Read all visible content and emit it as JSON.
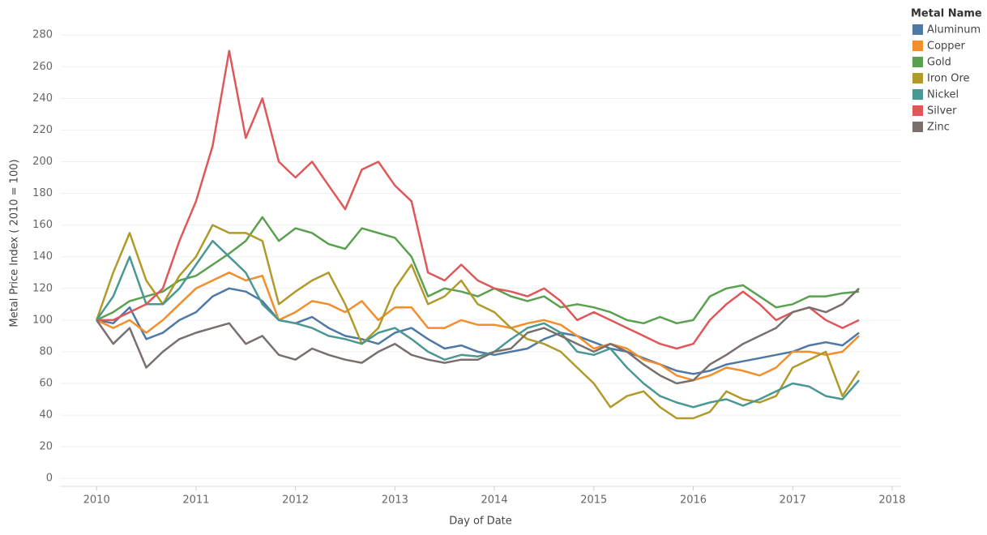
{
  "chart_data": {
    "type": "line",
    "y_label": "Metal Price Index ( 2010 = 100)",
    "x_label": "Day of Date",
    "legend_title": "Metal Name",
    "legend": "right",
    "grid": true,
    "xlim": [
      2009.64,
      2018.09
    ],
    "xticks": [
      2010,
      2011,
      2012,
      2013,
      2014,
      2015,
      2016,
      2017,
      2018
    ],
    "ylim": [
      -5,
      297
    ],
    "yticks": [
      0,
      20,
      40,
      60,
      80,
      100,
      120,
      140,
      160,
      180,
      200,
      220,
      240,
      260,
      280
    ],
    "x": [
      2010,
      2010.167,
      2010.333,
      2010.5,
      2010.667,
      2010.833,
      2011,
      2011.167,
      2011.333,
      2011.5,
      2011.667,
      2011.833,
      2012,
      2012.167,
      2012.333,
      2012.5,
      2012.667,
      2012.833,
      2013,
      2013.167,
      2013.333,
      2013.5,
      2013.667,
      2013.833,
      2014,
      2014.167,
      2014.333,
      2014.5,
      2014.667,
      2014.833,
      2015,
      2015.167,
      2015.333,
      2015.5,
      2015.667,
      2015.833,
      2016,
      2016.167,
      2016.333,
      2016.5,
      2016.667,
      2016.833,
      2017,
      2017.167,
      2017.333,
      2017.5,
      2017.667
    ],
    "series": [
      {
        "name": "Aluminum",
        "color": "#4e79a7",
        "values": [
          100,
          98,
          108,
          88,
          92,
          100,
          105,
          115,
          120,
          118,
          112,
          100,
          98,
          102,
          95,
          90,
          88,
          85,
          92,
          95,
          88,
          82,
          84,
          80,
          78,
          80,
          82,
          88,
          92,
          90,
          86,
          82,
          80,
          76,
          72,
          68,
          66,
          68,
          72,
          74,
          76,
          78,
          80,
          84,
          86,
          84,
          92
        ]
      },
      {
        "name": "Copper",
        "color": "#f28e2b",
        "values": [
          100,
          95,
          100,
          92,
          100,
          110,
          120,
          125,
          130,
          125,
          128,
          100,
          105,
          112,
          110,
          105,
          112,
          100,
          108,
          108,
          95,
          95,
          100,
          97,
          97,
          95,
          98,
          100,
          97,
          90,
          82,
          85,
          82,
          75,
          72,
          65,
          62,
          65,
          70,
          68,
          65,
          70,
          80,
          80,
          78,
          80,
          90
        ]
      },
      {
        "name": "Gold",
        "color": "#59a14f",
        "values": [
          100,
          105,
          112,
          115,
          118,
          125,
          128,
          135,
          142,
          150,
          165,
          150,
          158,
          155,
          148,
          145,
          158,
          155,
          152,
          140,
          115,
          120,
          118,
          115,
          120,
          115,
          112,
          115,
          108,
          110,
          108,
          105,
          100,
          98,
          102,
          98,
          100,
          115,
          120,
          122,
          115,
          108,
          110,
          115,
          115,
          117,
          118
        ]
      },
      {
        "name": "Iron Ore",
        "color": "#b09a2a",
        "values": [
          100,
          130,
          155,
          125,
          110,
          128,
          140,
          160,
          155,
          155,
          150,
          110,
          118,
          125,
          130,
          110,
          85,
          95,
          120,
          135,
          110,
          115,
          125,
          110,
          105,
          95,
          88,
          85,
          80,
          70,
          60,
          45,
          52,
          55,
          45,
          38,
          38,
          42,
          55,
          50,
          48,
          52,
          70,
          75,
          80,
          52,
          68
        ]
      },
      {
        "name": "Nickel",
        "color": "#499894",
        "values": [
          100,
          115,
          140,
          110,
          110,
          120,
          135,
          150,
          140,
          130,
          110,
          100,
          98,
          95,
          90,
          88,
          85,
          92,
          95,
          88,
          80,
          75,
          78,
          77,
          80,
          88,
          95,
          98,
          92,
          80,
          78,
          82,
          70,
          60,
          52,
          48,
          45,
          48,
          50,
          46,
          50,
          55,
          60,
          58,
          52,
          50,
          62
        ]
      },
      {
        "name": "Silver",
        "color": "#e15759",
        "values": [
          100,
          100,
          105,
          110,
          120,
          150,
          175,
          210,
          270,
          215,
          240,
          200,
          190,
          200,
          185,
          170,
          195,
          200,
          185,
          175,
          130,
          125,
          135,
          125,
          120,
          118,
          115,
          120,
          112,
          100,
          105,
          100,
          95,
          90,
          85,
          82,
          85,
          100,
          110,
          118,
          110,
          100,
          105,
          108,
          100,
          95,
          100
        ]
      },
      {
        "name": "Zinc",
        "color": "#79706e",
        "values": [
          100,
          85,
          95,
          70,
          80,
          88,
          92,
          95,
          98,
          85,
          90,
          78,
          75,
          82,
          78,
          75,
          73,
          80,
          85,
          78,
          75,
          73,
          75,
          75,
          80,
          82,
          92,
          95,
          90,
          85,
          80,
          85,
          80,
          72,
          65,
          60,
          62,
          72,
          78,
          85,
          90,
          95,
          105,
          108,
          105,
          110,
          120
        ]
      }
    ]
  }
}
